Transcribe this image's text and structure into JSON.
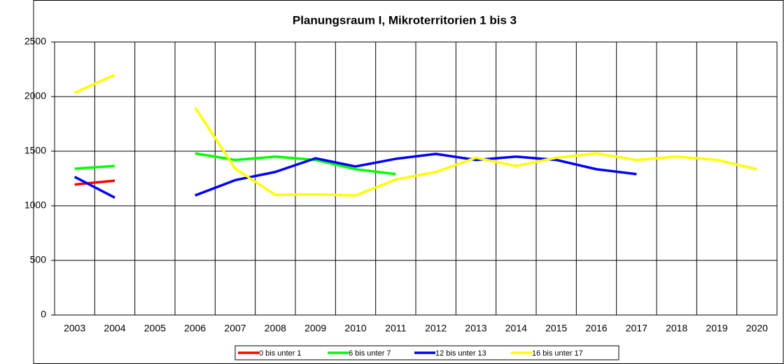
{
  "chart_data": {
    "type": "line",
    "title": "Planungsraum I, Mikroterritorien 1 bis 3",
    "categories": [
      "2003",
      "2004",
      "2005",
      "2006",
      "2007",
      "2008",
      "2009",
      "2010",
      "2011",
      "2012",
      "2013",
      "2014",
      "2015",
      "2016",
      "2017",
      "2018",
      "2019",
      "2020"
    ],
    "series": [
      {
        "name": "0 bis unter 1",
        "color": "#ff0000",
        "values": [
          1195,
          1230,
          null,
          null,
          null,
          null,
          null,
          null,
          null,
          null,
          null,
          null,
          null,
          null,
          null,
          null,
          null,
          null
        ]
      },
      {
        "name": "6 bis unter 7",
        "color": "#00ff00",
        "values": [
          1340,
          1365,
          null,
          1480,
          1420,
          1450,
          1420,
          1335,
          1290,
          null,
          null,
          null,
          null,
          null,
          null,
          null,
          null,
          null
        ]
      },
      {
        "name": "12 bis unter 13",
        "color": "#0000ff",
        "values": [
          1265,
          1075,
          null,
          1095,
          1235,
          1310,
          1435,
          1360,
          1430,
          1475,
          1420,
          1450,
          1420,
          1335,
          1290,
          null,
          null,
          null
        ]
      },
      {
        "name": "16 bis unter 17",
        "color": "#ffff00",
        "values": [
          2035,
          2200,
          null,
          1900,
          1340,
          1100,
          1105,
          1095,
          1240,
          1310,
          1440,
          1365,
          1440,
          1480,
          1420,
          1450,
          1420,
          1335
        ]
      }
    ],
    "ylim": [
      0,
      2500
    ],
    "yticks": [
      0,
      500,
      1000,
      1500,
      2000,
      2500
    ],
    "grid": true
  }
}
